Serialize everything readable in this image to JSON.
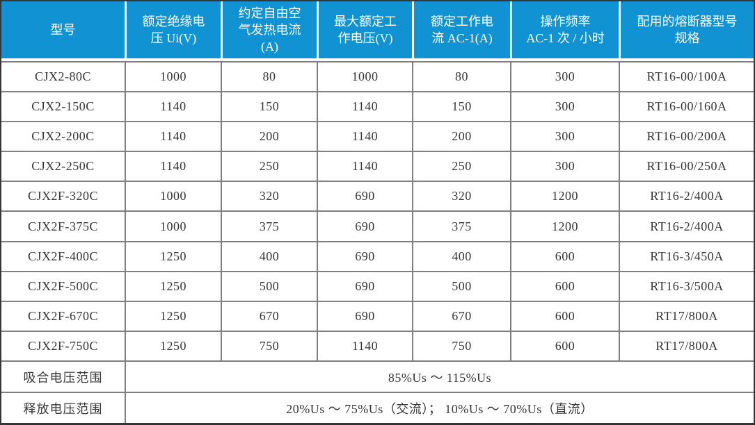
{
  "theme": {
    "header_bg": "#1193d3",
    "header_text": "#ffffff",
    "body_text": "#363636",
    "grid_color": "#7f7f7f",
    "frame_color": "#363636",
    "row_bg": "#ffffff"
  },
  "table": {
    "columns": [
      {
        "id": "model",
        "label": "型号"
      },
      {
        "id": "rated_insulation_voltage",
        "label": "额定绝缘电\n压 Ui(V)"
      },
      {
        "id": "conventional_free_air_thermal_current",
        "label": "约定自由空\n气发热电流\n(A)"
      },
      {
        "id": "max_rated_working_voltage",
        "label": "最大额定工\n作电压(V)"
      },
      {
        "id": "rated_working_current_ac1",
        "label": "额定工作电\n流 AC-1(A)"
      },
      {
        "id": "operating_frequency",
        "label": "操作频率\nAC-1 次 / 小时"
      },
      {
        "id": "matching_fuse_spec",
        "label": "配用的熔断器型号\n规格"
      }
    ],
    "rows": [
      {
        "model": "CJX2-80C",
        "values": [
          "1000",
          "80",
          "1000",
          "80",
          "300",
          "RT16-00/100A"
        ]
      },
      {
        "model": "CJX2-150C",
        "values": [
          "1140",
          "150",
          "1140",
          "150",
          "300",
          "RT16-00/160A"
        ]
      },
      {
        "model": "CJX2-200C",
        "values": [
          "1140",
          "200",
          "1140",
          "200",
          "300",
          "RT16-00/200A"
        ]
      },
      {
        "model": "CJX2-250C",
        "values": [
          "1140",
          "250",
          "1140",
          "250",
          "300",
          "RT16-00/250A"
        ]
      },
      {
        "model": "CJX2F-320C",
        "values": [
          "1000",
          "320",
          "690",
          "320",
          "1200",
          "RT16-2/400A"
        ]
      },
      {
        "model": "CJX2F-375C",
        "values": [
          "1000",
          "375",
          "690",
          "375",
          "1200",
          "RT16-2/400A"
        ]
      },
      {
        "model": "CJX2F-400C",
        "values": [
          "1250",
          "400",
          "690",
          "400",
          "600",
          "RT16-3/450A"
        ]
      },
      {
        "model": "CJX2F-500C",
        "values": [
          "1250",
          "500",
          "690",
          "500",
          "600",
          "RT16-3/500A"
        ]
      },
      {
        "model": "CJX2F-670C",
        "values": [
          "1250",
          "670",
          "690",
          "670",
          "600",
          "RT17/800A"
        ]
      },
      {
        "model": "CJX2F-750C",
        "values": [
          "1250",
          "750",
          "1140",
          "750",
          "600",
          "RT17/800A"
        ]
      }
    ],
    "footer_rows": [
      {
        "label": "吸合电压范围",
        "value": "85%Us ～ 115%Us"
      },
      {
        "label": "释放电压范围",
        "value": "20%Us ～ 75%Us（交流）； 10%Us ～ 70%Us（直流）"
      }
    ]
  }
}
